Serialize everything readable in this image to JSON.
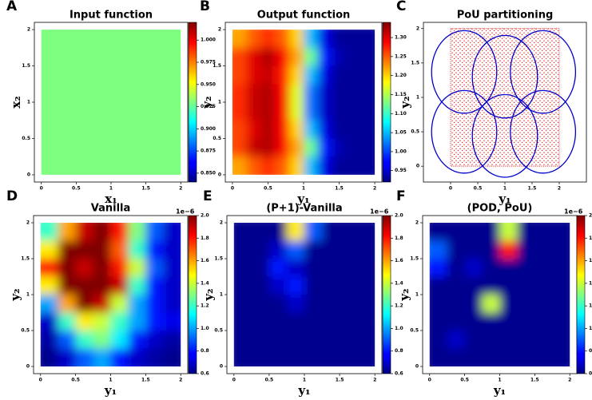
{
  "chart_data": [
    {
      "type": "heatmap",
      "label": "A",
      "title": "Input function",
      "xlabel": "x₁",
      "ylabel": "x₂",
      "xlim": [
        -0.1,
        2.1
      ],
      "ylim": [
        -0.1,
        2.1
      ],
      "xticks": [
        0,
        0.5,
        1,
        1.5,
        2
      ],
      "yticks": [
        0,
        0.5,
        1,
        1.5,
        2
      ],
      "domain": [
        0,
        2
      ],
      "colormap": "jet",
      "vlim": [
        0.9,
        1.1
      ],
      "values": [
        [
          1.0,
          1.0
        ],
        [
          1.0,
          1.0
        ]
      ],
      "clim": [
        0.84,
        1.02
      ],
      "cticks": [
        {
          "value": 0.85,
          "label": "0.850"
        },
        {
          "value": 0.875,
          "label": "0.875"
        },
        {
          "value": 0.9,
          "label": "0.900"
        },
        {
          "value": 0.925,
          "label": "0.925"
        },
        {
          "value": 0.95,
          "label": "0.950"
        },
        {
          "value": 0.975,
          "label": "0.975"
        },
        {
          "value": 1.0,
          "label": "1.000"
        }
      ]
    },
    {
      "type": "heatmap",
      "label": "B",
      "title": "Output function",
      "xlabel": "y₁",
      "ylabel": "y₂",
      "xlim": [
        -0.1,
        2.1
      ],
      "ylim": [
        -0.1,
        2.1
      ],
      "xticks": [
        0,
        0.5,
        1,
        1.5,
        2
      ],
      "yticks": [
        0,
        0.5,
        1,
        1.5,
        2
      ],
      "domain": [
        0,
        2
      ],
      "colormap": "jet",
      "vlim": [
        0.92,
        1.34
      ],
      "values": [
        [
          1.22,
          1.25,
          1.27,
          1.25,
          1.2,
          1.05,
          0.96,
          0.93,
          0.93,
          0.93
        ],
        [
          1.26,
          1.3,
          1.32,
          1.29,
          1.22,
          1.12,
          0.98,
          0.94,
          0.93,
          0.93
        ],
        [
          1.26,
          1.3,
          1.31,
          1.28,
          1.2,
          1.05,
          0.96,
          0.93,
          0.93,
          0.93
        ],
        [
          1.27,
          1.31,
          1.32,
          1.29,
          1.17,
          1.02,
          0.95,
          0.93,
          0.93,
          0.93
        ],
        [
          1.27,
          1.31,
          1.32,
          1.29,
          1.17,
          1.02,
          0.95,
          0.93,
          0.93,
          0.93
        ],
        [
          1.26,
          1.3,
          1.32,
          1.29,
          1.2,
          1.05,
          0.96,
          0.93,
          0.93,
          0.93
        ],
        [
          1.26,
          1.31,
          1.32,
          1.29,
          1.22,
          1.12,
          0.98,
          0.94,
          0.93,
          0.93
        ],
        [
          1.22,
          1.25,
          1.27,
          1.25,
          1.2,
          1.05,
          0.96,
          0.93,
          0.93,
          0.93
        ]
      ],
      "clim": [
        0.92,
        1.34
      ],
      "cticks": [
        0.95,
        {
          "value": 1.0,
          "label": "1.00"
        },
        1.05,
        {
          "value": 1.1,
          "label": "1.10"
        },
        1.15,
        {
          "value": 1.2,
          "label": "1.20"
        },
        1.25,
        {
          "value": 1.3,
          "label": "1.30"
        }
      ]
    },
    {
      "type": "pou",
      "label": "C",
      "title": "PoU partitioning",
      "xlabel": "y₁",
      "ylabel": "y₂",
      "xlim": [
        -0.5,
        2.5
      ],
      "ylim": [
        -0.23,
        2.09
      ],
      "xticks": [
        0,
        0.5,
        1,
        1.5,
        2
      ],
      "yticks": [
        0,
        0.5,
        1,
        1.5,
        2
      ],
      "domain": [
        0,
        2
      ],
      "point_color": "#e02020",
      "circle_color": "#0000cc",
      "centers": [
        [
          0.25,
          1.37
        ],
        [
          1.0,
          1.3
        ],
        [
          1.7,
          1.37
        ],
        [
          0.25,
          0.5
        ],
        [
          1.0,
          0.44
        ],
        [
          1.7,
          0.5
        ]
      ],
      "radius": 0.6
    },
    {
      "type": "heatmap",
      "label": "D",
      "title": "Vanilla",
      "xlabel": "y₁",
      "ylabel": "y₂",
      "xlim": [
        -0.1,
        2.1
      ],
      "ylim": [
        -0.1,
        2.1
      ],
      "xticks": [
        0,
        0.5,
        1,
        1.5,
        2
      ],
      "yticks": [
        0,
        0.5,
        1,
        1.5,
        2
      ],
      "domain": [
        0,
        2
      ],
      "colormap": "jet",
      "vlim": [
        0.6,
        2.0
      ],
      "values": [
        [
          1.2,
          1.6,
          1.9,
          2.0,
          1.8,
          1.3,
          0.9,
          0.7
        ],
        [
          1.5,
          2.0,
          2.0,
          2.0,
          1.7,
          1.2,
          0.8,
          0.7
        ],
        [
          1.8,
          2.0,
          1.9,
          2.0,
          1.8,
          1.4,
          0.9,
          0.7
        ],
        [
          1.5,
          2.0,
          2.0,
          2.0,
          1.9,
          1.2,
          0.8,
          0.7
        ],
        [
          1.0,
          1.6,
          2.0,
          1.9,
          1.4,
          1.0,
          0.8,
          0.7
        ],
        [
          0.7,
          1.2,
          1.5,
          1.4,
          1.2,
          1.0,
          0.8,
          0.75
        ],
        [
          0.65,
          0.9,
          1.2,
          1.3,
          1.1,
          0.8,
          0.7,
          0.65
        ],
        [
          0.62,
          0.7,
          0.9,
          1.0,
          0.8,
          0.7,
          0.65,
          0.62
        ]
      ],
      "clim": [
        0.6,
        2.0
      ],
      "coffset": "1e−6",
      "cticks": [
        0.6,
        0.8,
        {
          "value": 1.0,
          "label": "1.0"
        },
        1.2,
        1.4,
        1.6,
        1.8,
        {
          "value": 2.0,
          "label": "2.0"
        }
      ]
    },
    {
      "type": "heatmap",
      "label": "E",
      "title": "(P+1)-Vanilla",
      "xlabel": "y₁",
      "ylabel": "y₂",
      "xlim": [
        -0.1,
        2.1
      ],
      "ylim": [
        -0.1,
        2.1
      ],
      "xticks": [
        0,
        0.5,
        1,
        1.5,
        2
      ],
      "yticks": [
        0,
        0.5,
        1,
        1.5,
        2
      ],
      "domain": [
        0,
        2
      ],
      "colormap": "jet",
      "vlim": [
        0.6,
        2.0
      ],
      "values": [
        [
          0.62,
          0.62,
          0.62,
          1.5,
          0.9,
          0.62,
          0.62,
          0.62
        ],
        [
          0.62,
          0.62,
          0.7,
          0.9,
          0.62,
          0.62,
          0.62,
          0.62
        ],
        [
          0.62,
          0.62,
          0.8,
          0.7,
          0.62,
          0.62,
          0.62,
          0.62
        ],
        [
          0.62,
          0.62,
          0.7,
          0.8,
          0.62,
          0.62,
          0.62,
          0.62
        ],
        [
          0.62,
          0.62,
          0.62,
          0.7,
          0.62,
          0.62,
          0.62,
          0.62
        ],
        [
          0.62,
          0.62,
          0.62,
          0.62,
          0.62,
          0.62,
          0.62,
          0.62
        ],
        [
          0.62,
          0.62,
          0.62,
          0.62,
          0.62,
          0.62,
          0.62,
          0.62
        ],
        [
          0.62,
          0.62,
          0.62,
          0.62,
          0.62,
          0.62,
          0.62,
          0.62
        ]
      ],
      "clim": [
        0.6,
        2.0
      ],
      "coffset": "1e−6",
      "cticks": [
        0.6,
        0.8,
        {
          "value": 1.0,
          "label": "1.0"
        },
        1.2,
        1.4,
        1.6,
        1.8,
        {
          "value": 2.0,
          "label": "2.0"
        }
      ]
    },
    {
      "type": "heatmap",
      "label": "F",
      "title": "(POD, PoU)",
      "xlabel": "y₁",
      "ylabel": "y₂",
      "xlim": [
        -0.1,
        2.1
      ],
      "ylim": [
        -0.1,
        2.1
      ],
      "xticks": [
        0,
        0.5,
        1,
        1.5,
        2
      ],
      "yticks": [
        0,
        0.5,
        1,
        1.5,
        2
      ],
      "domain": [
        0,
        2
      ],
      "colormap": "jet",
      "vlim": [
        0.6,
        2.0
      ],
      "values": [
        [
          0.62,
          0.62,
          0.62,
          0.62,
          1.4,
          0.62,
          0.62,
          0.62
        ],
        [
          0.9,
          0.62,
          0.62,
          0.62,
          1.8,
          0.62,
          0.62,
          0.62
        ],
        [
          0.8,
          0.62,
          0.7,
          0.62,
          0.62,
          0.62,
          0.62,
          0.62
        ],
        [
          0.62,
          0.62,
          0.62,
          0.62,
          0.62,
          0.62,
          0.62,
          0.62
        ],
        [
          0.62,
          0.62,
          0.62,
          1.4,
          0.62,
          0.62,
          0.62,
          0.62
        ],
        [
          0.62,
          0.62,
          0.62,
          0.62,
          0.62,
          0.62,
          0.62,
          0.62
        ],
        [
          0.62,
          0.7,
          0.62,
          0.62,
          0.62,
          0.62,
          0.62,
          0.62
        ],
        [
          0.62,
          0.62,
          0.62,
          0.62,
          0.62,
          0.62,
          0.62,
          0.62
        ]
      ],
      "clim": [
        0.6,
        2.0
      ],
      "coffset": "1e−6",
      "cticks": [
        0.6,
        0.8,
        {
          "value": 1.0,
          "label": "1.0"
        },
        1.2,
        1.4,
        1.6,
        1.8,
        {
          "value": 2.0,
          "label": "2.0"
        }
      ]
    }
  ]
}
